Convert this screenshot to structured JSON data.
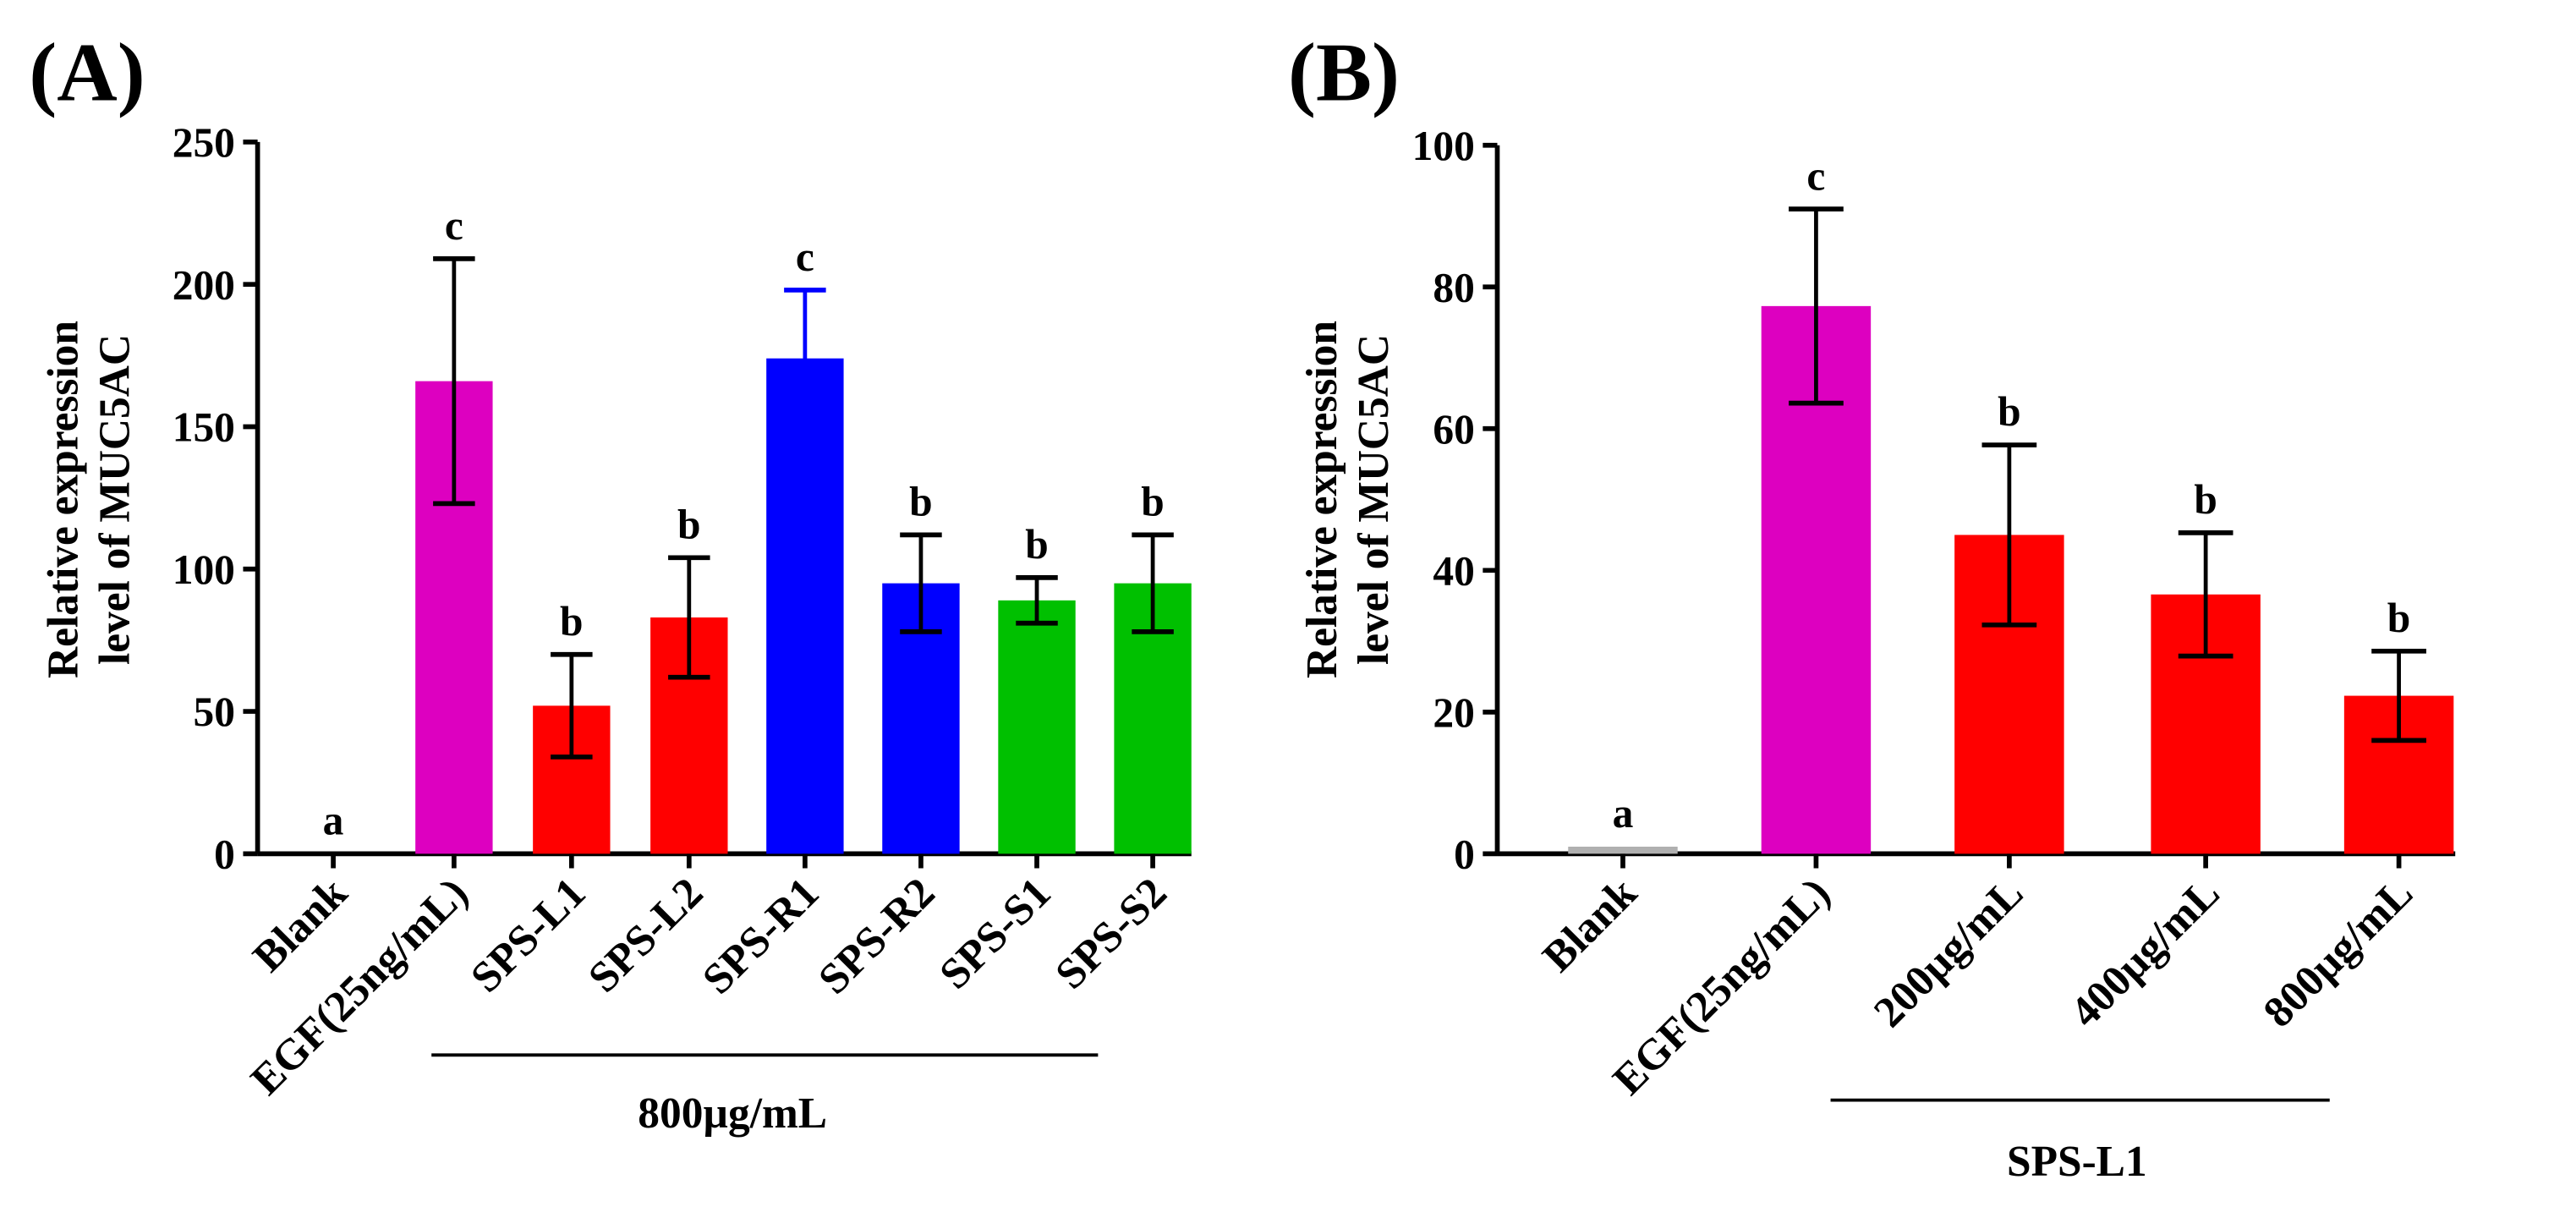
{
  "chart_data": [
    {
      "type": "bar",
      "panel_label": "(A)",
      "ylabel_lines": [
        "Relative expression",
        "level of MUC5AC"
      ],
      "ylim": [
        0,
        250
      ],
      "yticks": [
        0,
        50,
        100,
        150,
        200,
        250
      ],
      "grid": false,
      "categories": [
        "Blank",
        "EGF(25ng/mL)",
        "SPS-L1",
        "SPS-L2",
        "SPS-R1",
        "SPS-R2",
        "SPS-S1",
        "SPS-S2"
      ],
      "values": [
        0,
        166,
        52,
        83,
        174,
        95,
        89,
        95
      ],
      "errors": [
        0,
        43,
        18,
        21,
        24,
        17,
        8,
        17
      ],
      "colors": [
        "#b0b0b0",
        "#dd00c0",
        "#ff0000",
        "#ff0000",
        "#0000ff",
        "#0000ff",
        "#00c000",
        "#00c000"
      ],
      "error_colors": [
        "#000000",
        "#000000",
        "#000000",
        "#000000",
        "#0000ff",
        "#000000",
        "#000000",
        "#000000"
      ],
      "significance": [
        "a",
        "c",
        "b",
        "b",
        "c",
        "b",
        "b",
        "b"
      ],
      "group_label": "800µg/mL",
      "group_span": [
        2,
        7
      ]
    },
    {
      "type": "bar",
      "panel_label": "(B)",
      "ylabel_lines": [
        "Relative expression",
        "level of MUC5AC"
      ],
      "ylim": [
        0,
        100
      ],
      "yticks": [
        0,
        20,
        40,
        60,
        80,
        100
      ],
      "grid": false,
      "categories": [
        "Blank",
        "EGF(25ng/mL)",
        "200µg/mL",
        "400µg/mL",
        "800µg/mL"
      ],
      "values": [
        1,
        77.3,
        45,
        36.6,
        22.3
      ],
      "errors": [
        0,
        13.7,
        12.7,
        8.7,
        6.3
      ],
      "colors": [
        "#b0b0b0",
        "#dd00c0",
        "#ff0000",
        "#ff0000",
        "#ff0000"
      ],
      "error_colors": [
        "#000000",
        "#000000",
        "#000000",
        "#000000",
        "#000000"
      ],
      "significance": [
        "a",
        "c",
        "b",
        "b",
        "b"
      ],
      "group_label": "SPS-L1",
      "group_span": [
        2,
        4
      ]
    }
  ]
}
